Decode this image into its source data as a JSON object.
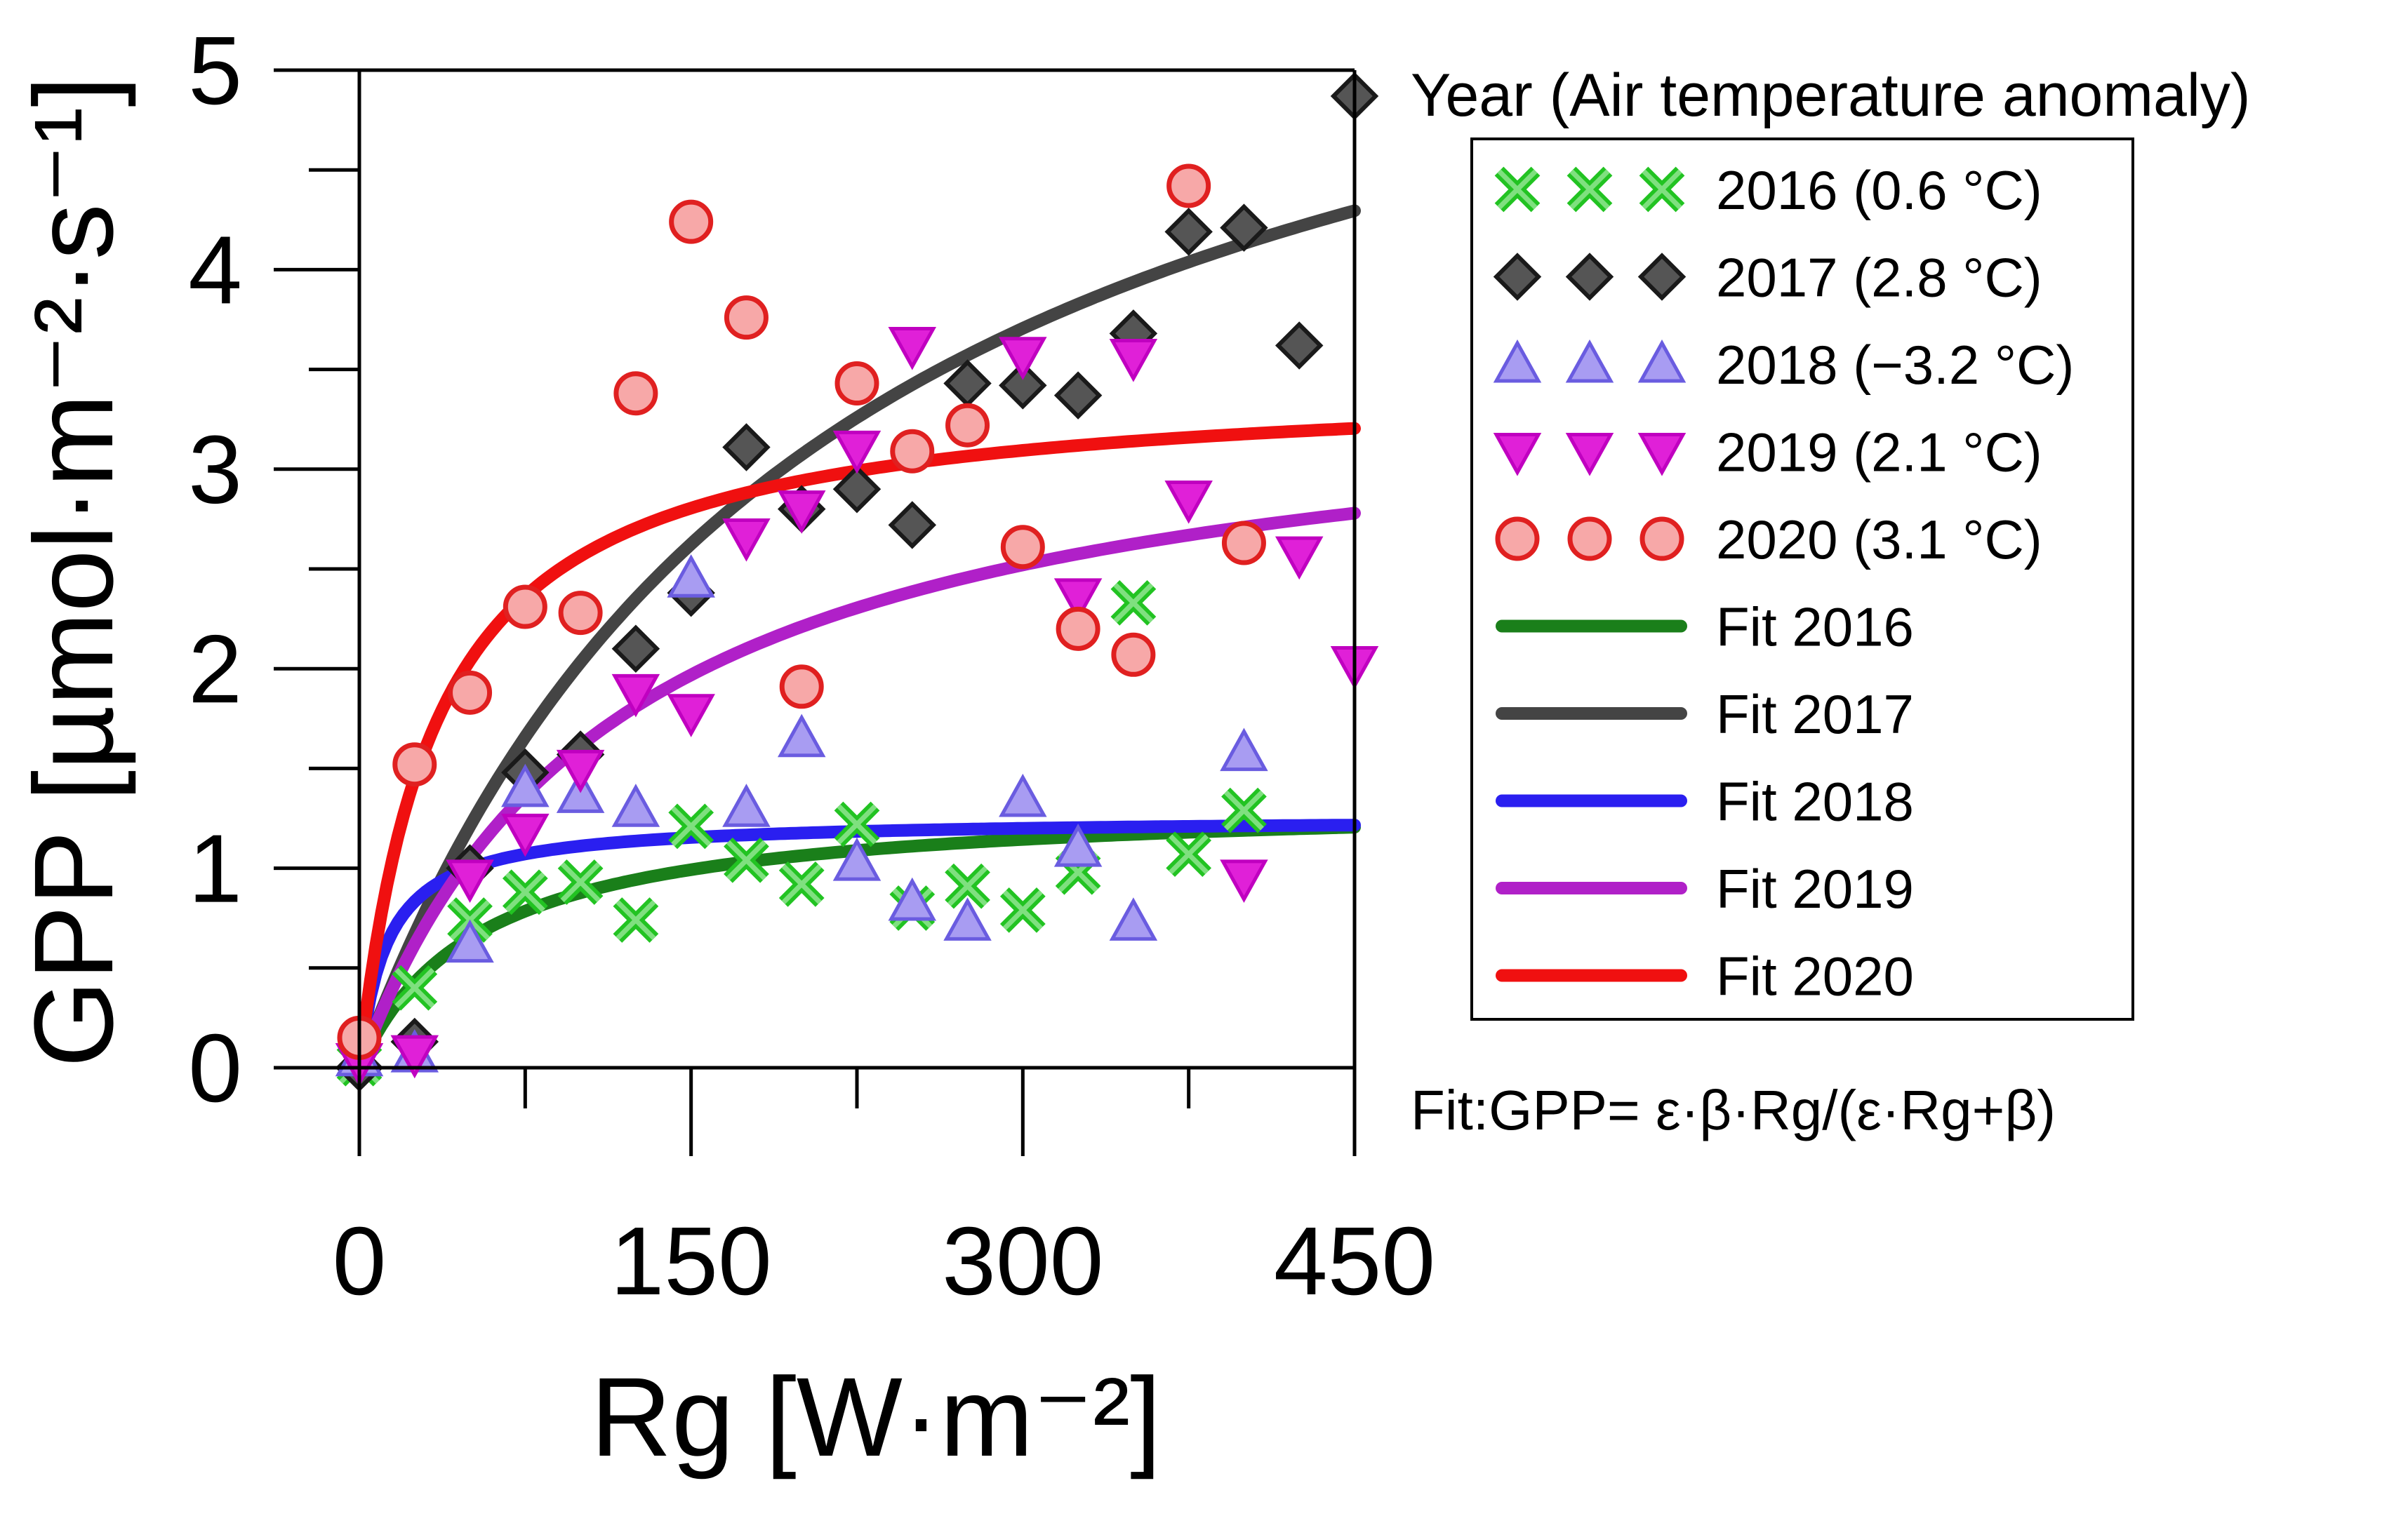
{
  "chart_data": {
    "type": "scatter",
    "xlabel": "Rg [W·m⁻²]",
    "ylabel": "GPP [µmol·m⁻²·s⁻¹]",
    "xlim": [
      0,
      450
    ],
    "ylim": [
      0,
      5
    ],
    "x_ticks": [
      0,
      150,
      300,
      450
    ],
    "y_ticks": [
      0,
      1,
      2,
      3,
      4,
      5
    ],
    "legend_title": "Year (Air temperature anomaly)",
    "legend_title_marker": {
      "x": 450,
      "y": 4.87
    },
    "formula": "Fit:GPP= ε·β·Rg/(ε·Rg+β)",
    "grid": false,
    "legend_placement": "right",
    "series": [
      {
        "name": "2016 (0.6 °C)",
        "marker": "x",
        "color": "#22c322",
        "fill": "#7fe07f",
        "points": [
          [
            0,
            0.02
          ],
          [
            25,
            0.4
          ],
          [
            50,
            0.74
          ],
          [
            75,
            0.88
          ],
          [
            100,
            0.93
          ],
          [
            125,
            0.74
          ],
          [
            150,
            1.21
          ],
          [
            175,
            1.04
          ],
          [
            200,
            0.92
          ],
          [
            225,
            1.22
          ],
          [
            250,
            0.8
          ],
          [
            275,
            0.91
          ],
          [
            300,
            0.79
          ],
          [
            325,
            0.98
          ],
          [
            350,
            2.33
          ],
          [
            375,
            1.07
          ],
          [
            400,
            1.29
          ]
        ]
      },
      {
        "name": "2017 (2.8 °C)",
        "marker": "diamond",
        "color": "#1a1a1a",
        "fill": "#555555",
        "points": [
          [
            0,
            0.0
          ],
          [
            25,
            0.13
          ],
          [
            50,
            1.0
          ],
          [
            75,
            1.48
          ],
          [
            100,
            1.57
          ],
          [
            125,
            2.1
          ],
          [
            150,
            2.38
          ],
          [
            175,
            3.11
          ],
          [
            200,
            2.8
          ],
          [
            225,
            2.9
          ],
          [
            250,
            2.72
          ],
          [
            275,
            3.43
          ],
          [
            300,
            3.42
          ],
          [
            325,
            3.37
          ],
          [
            350,
            3.68
          ],
          [
            375,
            4.19
          ],
          [
            400,
            4.21
          ],
          [
            425,
            3.62
          ]
        ]
      },
      {
        "name": "2018 (−3.2 °C)",
        "marker": "triangle-up",
        "color": "#6a5ce0",
        "fill": "#a89cf2",
        "points": [
          [
            0,
            0.05
          ],
          [
            25,
            0.07
          ],
          [
            50,
            0.62
          ],
          [
            75,
            1.4
          ],
          [
            100,
            1.37
          ],
          [
            125,
            1.3
          ],
          [
            150,
            2.45
          ],
          [
            175,
            1.3
          ],
          [
            200,
            1.65
          ],
          [
            225,
            1.03
          ],
          [
            250,
            0.83
          ],
          [
            275,
            0.73
          ],
          [
            300,
            1.35
          ],
          [
            325,
            1.1
          ],
          [
            350,
            0.73
          ],
          [
            400,
            1.58
          ]
        ]
      },
      {
        "name": "2019 (2.1 °C)",
        "marker": "triangle-down",
        "color": "#c000c0",
        "fill": "#e020d8",
        "points": [
          [
            0,
            0.03
          ],
          [
            25,
            0.07
          ],
          [
            50,
            0.95
          ],
          [
            75,
            1.18
          ],
          [
            100,
            1.5
          ],
          [
            125,
            1.88
          ],
          [
            150,
            1.78
          ],
          [
            175,
            2.66
          ],
          [
            200,
            2.8
          ],
          [
            225,
            3.1
          ],
          [
            250,
            3.62
          ],
          [
            300,
            3.57
          ],
          [
            325,
            2.36
          ],
          [
            350,
            3.56
          ],
          [
            375,
            2.85
          ],
          [
            400,
            0.95
          ],
          [
            425,
            2.57
          ],
          [
            450,
            2.02
          ]
        ]
      },
      {
        "name": "2020 (3.1 °C)",
        "marker": "circle",
        "color": "#e02020",
        "fill": "#f7a8a8",
        "points": [
          [
            0,
            0.15
          ],
          [
            25,
            1.52
          ],
          [
            50,
            1.88
          ],
          [
            75,
            2.31
          ],
          [
            100,
            2.28
          ],
          [
            125,
            3.38
          ],
          [
            150,
            4.24
          ],
          [
            175,
            3.76
          ],
          [
            200,
            1.91
          ],
          [
            225,
            3.43
          ],
          [
            250,
            3.09
          ],
          [
            275,
            3.22
          ],
          [
            300,
            2.61
          ],
          [
            325,
            2.2
          ],
          [
            350,
            2.07
          ],
          [
            375,
            4.42
          ],
          [
            400,
            2.63
          ]
        ]
      }
    ],
    "fits": [
      {
        "name": "Fit 2016",
        "color": "#1a7f1a",
        "epsilon": 0.025,
        "beta": 1.35
      },
      {
        "name": "Fit 2017",
        "color": "#444444",
        "epsilon": 0.03,
        "beta": 6.3
      },
      {
        "name": "Fit 2018",
        "color": "#2a1ff0",
        "epsilon": 0.1,
        "beta": 1.25
      },
      {
        "name": "Fit 2019",
        "color": "#b020c8",
        "epsilon": 0.03,
        "beta": 3.5
      },
      {
        "name": "Fit 2020",
        "color": "#f01010",
        "epsilon": 0.1,
        "beta": 3.45
      }
    ]
  }
}
